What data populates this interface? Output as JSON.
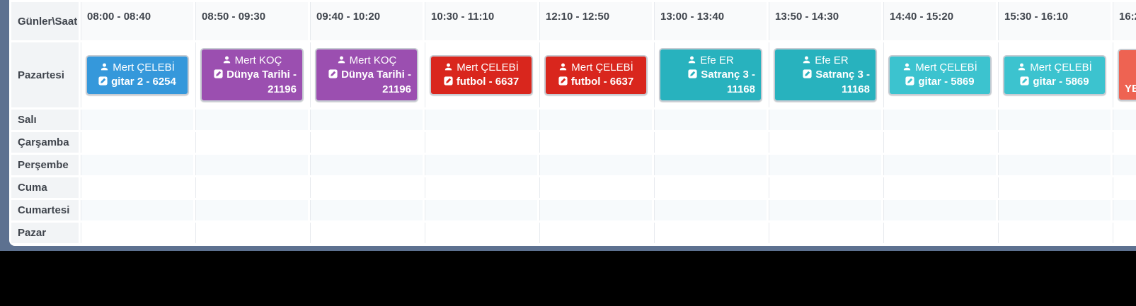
{
  "table": {
    "corner_label": "Günler\\Saat",
    "time_slots": [
      "08:00 - 08:40",
      "08:50 - 09:30",
      "09:40 - 10:20",
      "10:30 - 11:10",
      "12:10 - 12:50",
      "13:00 - 13:40",
      "13:50 - 14:30",
      "14:40 - 15:20",
      "15:30 - 16:10",
      "16:2"
    ],
    "days": [
      "Pazartesi",
      "Salı",
      "Çarşamba",
      "Perşembe",
      "Cuma",
      "Cumartesi",
      "Pazar"
    ],
    "events": {
      "Pazartesi": [
        {
          "teacher": "Mert ÇELEBİ",
          "lesson": "gitar 2 - 6254",
          "color": "#3598db"
        },
        {
          "teacher": "Mert KOÇ",
          "lesson": "Dünya Tarihi - 21196",
          "color": "#9b4fb0"
        },
        {
          "teacher": "Mert KOÇ",
          "lesson": "Dünya Tarihi - 21196",
          "color": "#9b4fb0"
        },
        {
          "teacher": "Mert ÇELEBİ",
          "lesson": "futbol - 6637",
          "color": "#d9261d"
        },
        {
          "teacher": "Mert ÇELEBİ",
          "lesson": "futbol - 6637",
          "color": "#d9261d"
        },
        {
          "teacher": "Efe ER",
          "lesson": "Satranç 3 - 11168",
          "color": "#28b2be"
        },
        {
          "teacher": "Efe ER",
          "lesson": "Satranç 3 - 11168",
          "color": "#28b2be"
        },
        {
          "teacher": "Mert ÇELEBİ",
          "lesson": "gitar - 5869",
          "color": "#3cc3cf"
        },
        {
          "teacher": "Mert ÇELEBİ",
          "lesson": "gitar - 5869",
          "color": "#3cc3cf"
        },
        {
          "teacher": "",
          "lesson": "YE",
          "color": "#ee6352",
          "partial": true
        }
      ]
    }
  }
}
